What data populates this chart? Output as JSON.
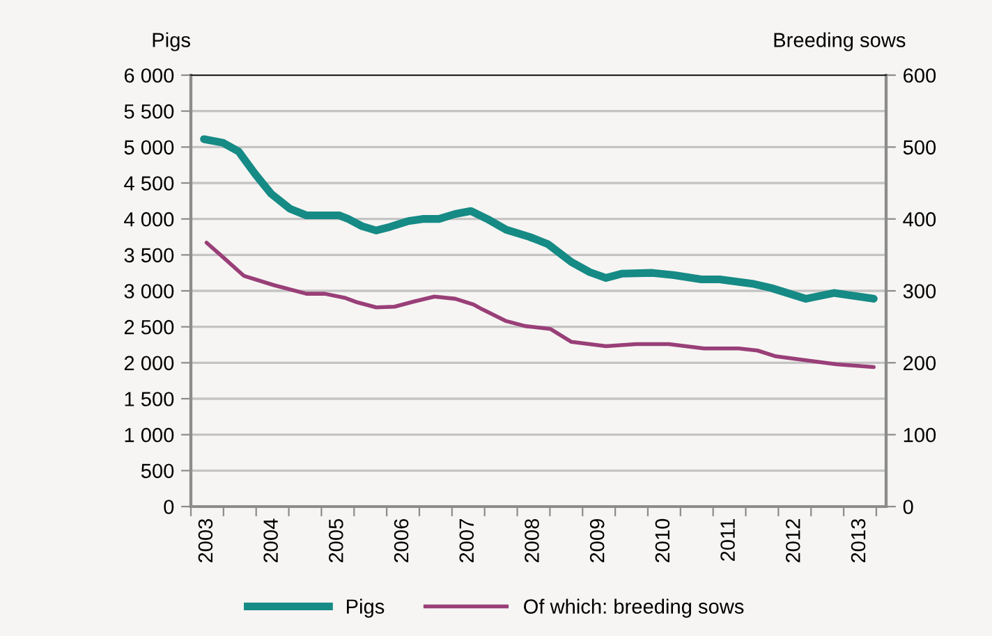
{
  "chart_data": {
    "type": "line",
    "ylabel": "Pigs",
    "y2label": "Breeding sows",
    "series": [
      {
        "name": "Pigs",
        "color": "#168a85",
        "x": [
          2002.95,
          2003.24,
          2003.48,
          2003.73,
          2003.98,
          2004.27,
          2004.52,
          2005.02,
          2005.16,
          2005.37,
          2005.59,
          2005.8,
          2006.08,
          2006.3,
          2006.55,
          2006.8,
          2007.04,
          2007.29,
          2007.58,
          2007.94,
          2008.22,
          2008.58,
          2008.86,
          2009.11,
          2009.36,
          2009.82,
          2010.14,
          2010.57,
          2010.85,
          2011.35,
          2011.64,
          2012.17,
          2012.6,
          2013.21
        ],
        "values": [
          5110,
          5060,
          4940,
          4630,
          4350,
          4140,
          4050,
          4050,
          4000,
          3900,
          3840,
          3890,
          3970,
          4000,
          4000,
          4070,
          4110,
          4000,
          3850,
          3750,
          3650,
          3400,
          3260,
          3180,
          3240,
          3250,
          3220,
          3160,
          3160,
          3100,
          3040,
          2890,
          2970,
          2890
        ]
      },
      {
        "name": "Of which: breeding sows",
        "color": "#993f78",
        "axis": "y2",
        "x": [
          2002.99,
          2003.24,
          2003.56,
          2004.02,
          2004.52,
          2004.8,
          2005.12,
          2005.3,
          2005.59,
          2005.87,
          2006.16,
          2006.48,
          2006.8,
          2007.08,
          2007.22,
          2007.58,
          2007.87,
          2008.26,
          2008.58,
          2009.11,
          2009.57,
          2010.07,
          2010.61,
          2011.14,
          2011.43,
          2011.71,
          2012.21,
          2012.64,
          2013.21
        ],
        "values": [
          367,
          347,
          321,
          308,
          296,
          296,
          290,
          284,
          277,
          278,
          285,
          292,
          289,
          281,
          274,
          258,
          251,
          247,
          229,
          223,
          226,
          226,
          220,
          220,
          217,
          209,
          203,
          198,
          194
        ]
      }
    ],
    "xlim": [
      2002.75,
      2013.4
    ],
    "xticks": [
      2003,
      2004,
      2005,
      2006,
      2007,
      2008,
      2009,
      2010,
      2011,
      2012,
      2013,
      {
        "value": 2002.75,
        "label": null
      },
      {
        "value": 2003.25,
        "label": null
      },
      {
        "value": 2003.75,
        "label": null
      },
      {
        "value": 2004.25,
        "label": null
      },
      {
        "value": 2004.75,
        "label": null
      },
      {
        "value": 2005.25,
        "label": null
      },
      {
        "value": 2005.75,
        "label": null
      },
      {
        "value": 2006.25,
        "label": null
      },
      {
        "value": 2006.75,
        "label": null
      },
      {
        "value": 2007.25,
        "label": null
      },
      {
        "value": 2007.75,
        "label": null
      },
      {
        "value": 2008.25,
        "label": null
      },
      {
        "value": 2008.75,
        "label": null
      },
      {
        "value": 2009.25,
        "label": null
      },
      {
        "value": 2009.75,
        "label": null
      },
      {
        "value": 2010.25,
        "label": null
      },
      {
        "value": 2010.75,
        "label": null
      },
      {
        "value": 2011.25,
        "label": null
      },
      {
        "value": 2011.75,
        "label": null
      },
      {
        "value": 2012.25,
        "label": null
      },
      {
        "value": 2012.75,
        "label": null
      },
      {
        "value": 2013.25,
        "label": null
      }
    ],
    "ylim": [
      0,
      6000
    ],
    "yticks": [
      0,
      500,
      {
        "value": 1000,
        "label": "1 000"
      },
      {
        "value": 1500,
        "label": "1 500"
      },
      {
        "value": 2000,
        "label": "2 000"
      },
      {
        "value": 2500,
        "label": "2 500"
      },
      {
        "value": 3000,
        "label": "3 000"
      },
      {
        "value": 3500,
        "label": "3 500"
      },
      {
        "value": 4000,
        "label": "4 000"
      },
      {
        "value": 4500,
        "label": "4 500"
      },
      {
        "value": 5000,
        "label": "5 000"
      },
      {
        "value": 5500,
        "label": "5 500"
      },
      {
        "value": 6000,
        "label": "6 000"
      }
    ],
    "y2lim": [
      0,
      600
    ],
    "y2ticks": [
      0,
      100,
      200,
      300,
      400,
      500,
      600
    ],
    "grid": "y",
    "legend": "bottom",
    "marker": "none",
    "line_style": "solid"
  }
}
